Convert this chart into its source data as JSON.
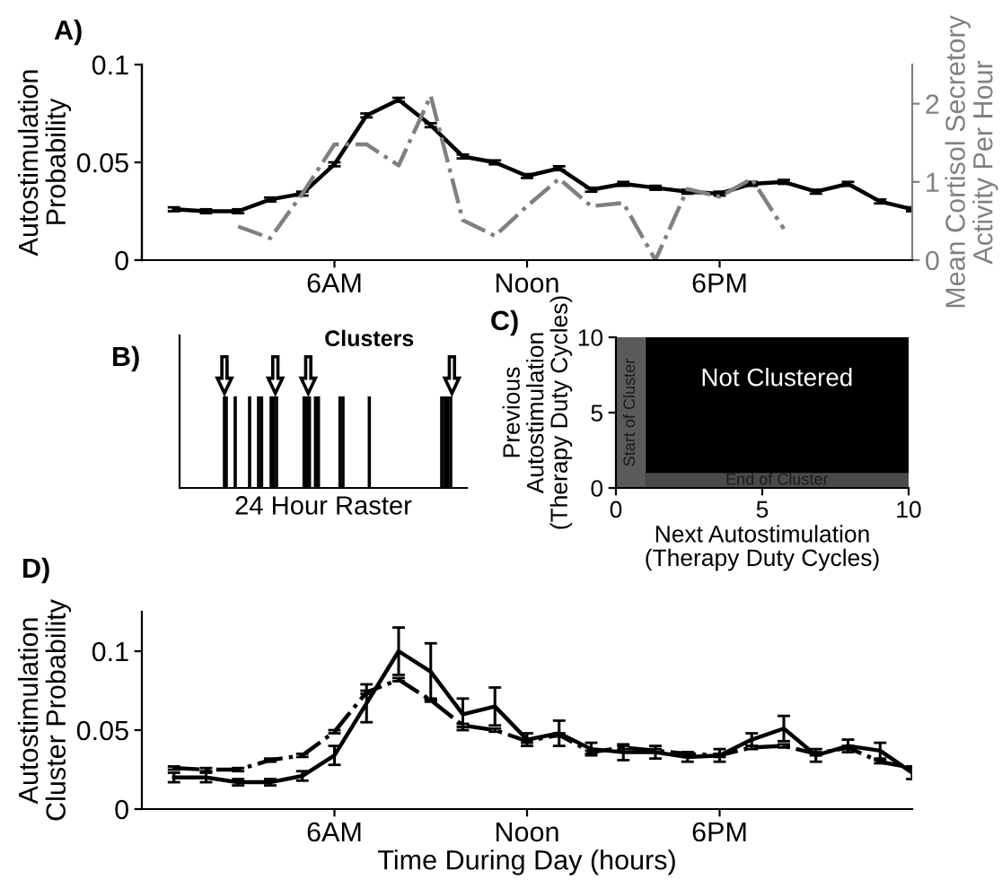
{
  "chart_data": [
    {
      "type": "line",
      "title": "A)",
      "ylabel": "Autostimulation\nProbability",
      "y2label": "Mean Cortisol Secretory\nActivity Per Hour",
      "categories": [
        null,
        null,
        null,
        null,
        null,
        "6AM",
        null,
        null,
        null,
        null,
        null,
        "Noon",
        null,
        null,
        null,
        null,
        null,
        "6PM",
        null,
        null,
        null,
        null,
        null,
        null
      ],
      "ylim": [
        0,
        0.1
      ],
      "yticks": [
        0,
        0.05,
        0.1
      ],
      "y2lim": [
        0,
        2.5
      ],
      "y2ticks": [
        0,
        1,
        2
      ],
      "series": [
        {
          "color": "#000000",
          "line_style": "solid",
          "values": [
            0.026,
            0.025,
            0.025,
            0.031,
            0.034,
            0.049,
            0.074,
            0.082,
            0.069,
            0.053,
            0.05,
            0.043,
            0.047,
            0.036,
            0.039,
            0.037,
            0.035,
            0.034,
            0.039,
            0.04,
            0.035,
            0.039,
            0.03,
            0.026
          ],
          "errors": [
            0.001,
            0.001,
            0.001,
            0.001,
            0.001,
            0.001,
            0.001,
            0.001,
            0.001,
            0.001,
            0.001,
            0.001,
            0.001,
            0.001,
            0.001,
            0.001,
            0.001,
            0.001,
            0.001,
            0.001,
            0.001,
            0.001,
            0.001,
            0.001
          ]
        },
        {
          "color": "#808080",
          "axis": "y2",
          "line_style": "dashed",
          "values": [
            null,
            null,
            0.43,
            0.28,
            0.85,
            1.48,
            1.48,
            1.21,
            2.1,
            0.51,
            0.31,
            0.69,
            1.04,
            0.69,
            0.73,
            0,
            0.91,
            0.81,
            1.04,
            0.4,
            null,
            null,
            null,
            null
          ]
        }
      ]
    },
    {
      "type": "other",
      "title": "B)",
      "xlabel": "24 Hour Raster",
      "annotations": [
        "Clusters"
      ]
    },
    {
      "type": "line",
      "title": "C)",
      "xlabel": "Next Autostimulation\n(Therapy Duty Cycles)",
      "ylabel": "Previous\nAutostimulation\n(Therapy Duty Cycles)",
      "xlim": [
        0,
        10
      ],
      "ylim": [
        0,
        10
      ],
      "xticks": [
        0,
        5,
        10
      ],
      "yticks": [
        0,
        5,
        10
      ],
      "bands": [
        {
          "axis": "x",
          "from": 1,
          "to": 10,
          "label": "Not Clustered",
          "color": "#000000"
        },
        {
          "axis": "y",
          "from": 0,
          "to": 1,
          "label": "End of Cluster",
          "color": "#4a4a4a"
        },
        {
          "axis": "x",
          "from": 0,
          "to": 1,
          "label": "Start of Cluster",
          "color": "#5a5a5a"
        }
      ]
    },
    {
      "type": "line",
      "title": "D)",
      "xlabel": "Time During Day (hours)",
      "ylabel": "Autostimulation\nCluster Probability",
      "categories": [
        null,
        null,
        null,
        null,
        null,
        "6AM",
        null,
        null,
        null,
        null,
        null,
        "Noon",
        null,
        null,
        null,
        null,
        null,
        "6PM",
        null,
        null,
        null,
        null,
        null,
        null
      ],
      "ylim": [
        0,
        0.125
      ],
      "yticks": [
        0,
        0.05,
        0.1
      ],
      "series": [
        {
          "color": "#000000",
          "line_style": "solid",
          "values": [
            0.02,
            0.02,
            0.017,
            0.017,
            0.021,
            0.034,
            0.067,
            0.1,
            0.087,
            0.06,
            0.065,
            0.044,
            0.048,
            0.038,
            0.036,
            0.036,
            0.033,
            0.034,
            0.044,
            0.051,
            0.034,
            0.04,
            0.037,
            0.023
          ],
          "errors": [
            0.003,
            0.003,
            0.002,
            0.002,
            0.003,
            0.006,
            0.012,
            0.015,
            0.018,
            0.01,
            0.012,
            0.004,
            0.008,
            0.004,
            0.005,
            0.004,
            0.003,
            0.004,
            0.004,
            0.008,
            0.004,
            0.004,
            0.005,
            0.004
          ]
        },
        {
          "color": "#000000",
          "line_style": "dashed",
          "values": [
            0.026,
            0.025,
            0.025,
            0.031,
            0.034,
            0.049,
            0.074,
            0.082,
            0.069,
            0.053,
            0.05,
            0.043,
            0.047,
            0.036,
            0.039,
            0.037,
            0.035,
            0.034,
            0.039,
            0.04,
            0.035,
            0.039,
            0.03,
            0.026
          ],
          "errors": [
            0.001,
            0.001,
            0.001,
            0.001,
            0.001,
            0.001,
            0.001,
            0.001,
            0.001,
            0.001,
            0.001,
            0.001,
            0.001,
            0.001,
            0.001,
            0.001,
            0.001,
            0.001,
            0.001,
            0.001,
            0.001,
            0.001,
            0.001,
            0.001
          ]
        }
      ]
    }
  ]
}
